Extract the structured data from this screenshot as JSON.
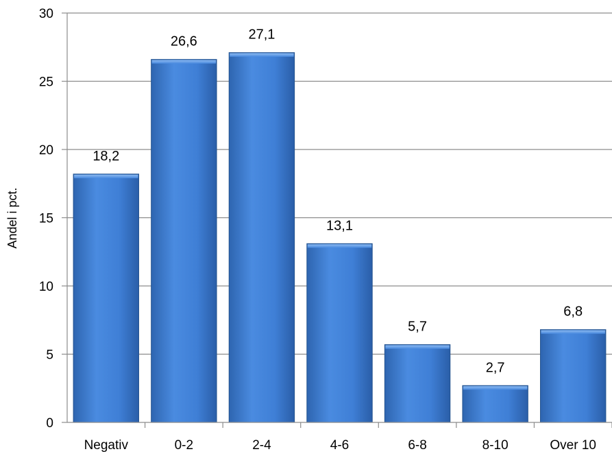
{
  "chart_data": {
    "type": "bar",
    "categories": [
      "Negativ",
      "0-2",
      "2-4",
      "4-6",
      "6-8",
      "8-10",
      "Over 10"
    ],
    "values": [
      18.2,
      26.6,
      27.1,
      13.1,
      5.7,
      2.7,
      6.8
    ],
    "data_labels": [
      "18,2",
      "26,6",
      "27,1",
      "13,1",
      "5,7",
      "2,7",
      "6,8"
    ],
    "ylabel": "Andel i pct.",
    "xlabel": "",
    "title": "",
    "ylim": [
      0,
      30
    ],
    "yticks": [
      0,
      5,
      10,
      15,
      20,
      25,
      30
    ],
    "grid": true,
    "legend": "none",
    "bar_color": "#3f7fd6",
    "bar_color_dark": "#24538f",
    "gridline_color": "#8c8c8c"
  }
}
